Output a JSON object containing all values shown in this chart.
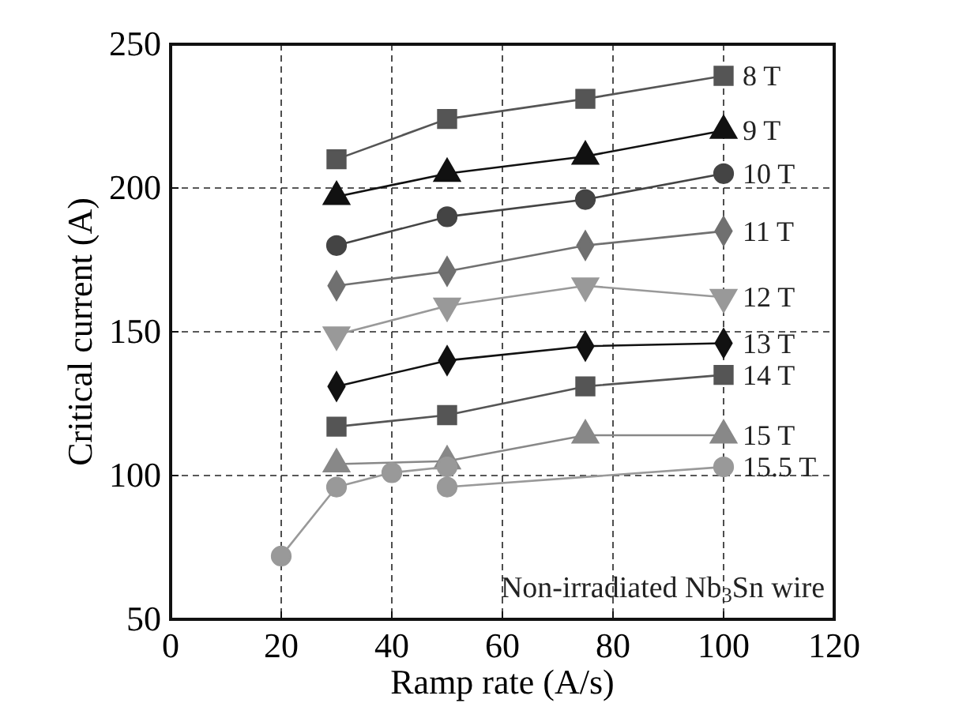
{
  "chart_data": {
    "type": "line",
    "xlabel": "Ramp rate (A/s)",
    "ylabel": "Critical current (A)",
    "xlim": [
      0,
      120
    ],
    "ylim": [
      50,
      250
    ],
    "xticks": [
      0,
      20,
      40,
      60,
      80,
      100,
      120
    ],
    "yticks": [
      50,
      100,
      150,
      200,
      250
    ],
    "grid": true,
    "line_style": "solid",
    "x": [
      30,
      50,
      75,
      100
    ],
    "series": [
      {
        "name": "8 T",
        "color": "#555555",
        "marker": "square",
        "values": [
          210,
          224,
          231,
          239
        ]
      },
      {
        "name": "9 T",
        "color": "#111111",
        "marker": "triangle",
        "values": [
          197,
          205,
          211,
          220
        ]
      },
      {
        "name": "10 T",
        "color": "#444444",
        "marker": "circle",
        "values": [
          180,
          190,
          196,
          205
        ]
      },
      {
        "name": "11 T",
        "color": "#707070",
        "marker": "diamond",
        "values": [
          166,
          171,
          180,
          185
        ]
      },
      {
        "name": "12 T",
        "color": "#999999",
        "marker": "triangle-down",
        "values": [
          149,
          159,
          166,
          162
        ]
      },
      {
        "name": "13 T",
        "color": "#111111",
        "marker": "diamond",
        "values": [
          131,
          140,
          145,
          146
        ]
      },
      {
        "name": "14 T",
        "color": "#555555",
        "marker": "square",
        "values": [
          117,
          121,
          131,
          135
        ]
      },
      {
        "name": "15 T",
        "color": "#888888",
        "marker": "triangle",
        "values": [
          104,
          105,
          114,
          114
        ]
      },
      {
        "name": "15.5 T",
        "color": "#999999",
        "marker": "circle",
        "x": [
          20,
          30,
          40,
          50,
          50,
          100
        ],
        "values": [
          72,
          96,
          101,
          103,
          96,
          103
        ]
      }
    ],
    "annotations": [
      "Non-irradiated Nb$_{3}$Sn wire"
    ]
  }
}
